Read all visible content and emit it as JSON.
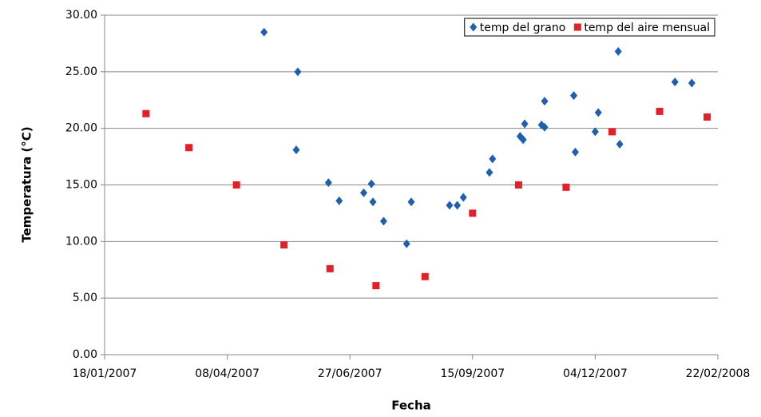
{
  "chart_data": {
    "type": "scatter",
    "x_label": "Fecha",
    "y_label": "Temperatura (°C)",
    "xlim": [
      "2007-01-18",
      "2008-02-22"
    ],
    "xticks": [
      {
        "value": "2007-01-18",
        "label": "18/01/2007"
      },
      {
        "value": "2007-04-08",
        "label": "08/04/2007"
      },
      {
        "value": "2007-06-27",
        "label": "27/06/2007"
      },
      {
        "value": "2007-09-15",
        "label": "15/09/2007"
      },
      {
        "value": "2007-12-04",
        "label": "04/12/2007"
      },
      {
        "value": "2008-02-22",
        "label": "22/02/2008"
      }
    ],
    "ylim": [
      0,
      30
    ],
    "yticks": [
      {
        "value": 0,
        "label": "0.00"
      },
      {
        "value": 5,
        "label": "5.00"
      },
      {
        "value": 10,
        "label": "10.00"
      },
      {
        "value": 15,
        "label": "15.00"
      },
      {
        "value": 20,
        "label": "20.00"
      },
      {
        "value": 25,
        "label": "25.00"
      },
      {
        "value": 30,
        "label": "30.00"
      }
    ],
    "grid": true,
    "legend": "top-right",
    "series": [
      {
        "name": "temp del grano",
        "color": "#1f5fb0",
        "marker": "diamond",
        "x": [
          "2007-05-02",
          "2007-05-24",
          "2007-05-23",
          "2007-06-13",
          "2007-06-20",
          "2007-07-06",
          "2007-07-11",
          "2007-07-12",
          "2007-07-19",
          "2007-08-03",
          "2007-08-06",
          "2007-08-31",
          "2007-09-05",
          "2007-09-09",
          "2007-09-26",
          "2007-09-28",
          "2007-10-16",
          "2007-10-18",
          "2007-10-19",
          "2007-10-30",
          "2007-11-01",
          "2007-11-01",
          "2007-11-20",
          "2007-11-21",
          "2007-12-04",
          "2007-12-06",
          "2007-12-19",
          "2007-12-20",
          "2008-01-25",
          "2008-02-05"
        ],
        "values": [
          28.5,
          25.0,
          18.1,
          15.2,
          13.6,
          14.3,
          15.1,
          13.5,
          11.8,
          9.8,
          13.5,
          13.2,
          13.2,
          13.9,
          16.1,
          17.3,
          19.3,
          19.0,
          20.4,
          20.3,
          22.4,
          20.1,
          22.9,
          17.9,
          19.7,
          21.4,
          26.8,
          18.6,
          24.1,
          24.0
        ]
      },
      {
        "name": "temp del aire mensual",
        "color": "#e32028",
        "marker": "square",
        "x": [
          "2007-02-14",
          "2007-03-14",
          "2007-04-14",
          "2007-05-15",
          "2007-06-14",
          "2007-07-14",
          "2007-08-15",
          "2007-09-15",
          "2007-10-15",
          "2007-11-15",
          "2007-12-15",
          "2008-01-15",
          "2008-02-15"
        ],
        "values": [
          21.3,
          18.3,
          15.0,
          9.7,
          7.6,
          6.1,
          6.9,
          12.5,
          15.0,
          14.8,
          19.7,
          21.5,
          21.0
        ]
      }
    ]
  }
}
